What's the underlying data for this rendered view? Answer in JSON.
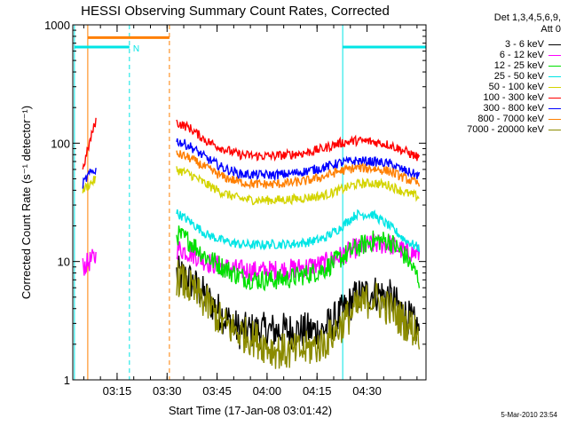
{
  "chart_data": {
    "type": "line",
    "title": "HESSI Observing Summary Count Rates, Corrected",
    "xlabel": "Start Time (17-Jan-08 03:01:42)",
    "ylabel": "Corrected Count Rate (s⁻¹ detector⁻¹)",
    "yscale": "log",
    "ylim": [
      1,
      1000
    ],
    "xlim_minutes": [
      0,
      106
    ],
    "x_tick_labels": [
      "03:15",
      "03:30",
      "03:45",
      "04:00",
      "04:15",
      "04:30"
    ],
    "y_tick_labels": [
      "1",
      "10",
      "100",
      "1000"
    ],
    "legend_header": [
      "Det 1,3,4,5,6,9,",
      "Att 0"
    ],
    "legend_position": "top-right-outside",
    "grid": false,
    "annotation": "N",
    "x_minutes": [
      3,
      5,
      7,
      29,
      31,
      35,
      40,
      45,
      50,
      55,
      60,
      65,
      70,
      75,
      80,
      85,
      90,
      95,
      100,
      104
    ],
    "series": [
      {
        "name": "3 - 6 keV",
        "color": "#000000",
        "values": [
          null,
          null,
          null,
          null,
          8,
          7,
          5,
          3.5,
          2.6,
          2.6,
          2.6,
          2.6,
          2.6,
          2.6,
          3.5,
          5,
          5.5,
          5,
          3.5,
          2.6
        ]
      },
      {
        "name": "6 - 12 keV",
        "color": "#ff00ff",
        "values": [
          9,
          10,
          11,
          null,
          13,
          12,
          10,
          9,
          8.5,
          8.3,
          8.4,
          8.6,
          9,
          9.5,
          11,
          13,
          14,
          14,
          12,
          11.5
        ]
      },
      {
        "name": "12 - 25 keV",
        "color": "#00e000",
        "values": [
          null,
          null,
          null,
          null,
          17,
          15,
          11,
          9,
          7.5,
          7,
          7,
          7.2,
          7.8,
          8.5,
          10.5,
          13,
          15,
          15,
          11,
          7
        ]
      },
      {
        "name": "25 - 50 keV",
        "color": "#00e5e5",
        "values": [
          null,
          null,
          null,
          null,
          26,
          22,
          17,
          15,
          14,
          13.8,
          14,
          14,
          14.5,
          15.5,
          19,
          25,
          25,
          20,
          15,
          13
        ]
      },
      {
        "name": "50 - 100 keV",
        "color": "#d4d400",
        "values": [
          40,
          45,
          50,
          null,
          60,
          55,
          45,
          38,
          34,
          33,
          33,
          33.5,
          34.5,
          36,
          40,
          45,
          46,
          44,
          38,
          35
        ]
      },
      {
        "name": "100 - 300 keV",
        "color": "#ff0000",
        "values": [
          60,
          100,
          160,
          null,
          150,
          135,
          105,
          90,
          80,
          78,
          78,
          80,
          83,
          90,
          100,
          105,
          103,
          97,
          85,
          75
        ]
      },
      {
        "name": "300 - 800 keV",
        "color": "#0000ff",
        "values": [
          45,
          55,
          60,
          null,
          105,
          95,
          75,
          62,
          55,
          54,
          54,
          55,
          58,
          62,
          68,
          71,
          70,
          67,
          58,
          53
        ]
      },
      {
        "name": "800 - 7000 keV",
        "color": "#ff7f00",
        "values": [
          null,
          null,
          null,
          null,
          82,
          75,
          62,
          52,
          47,
          45,
          45,
          46,
          48,
          52,
          58,
          62,
          61,
          58,
          50,
          45
        ]
      },
      {
        "name": "7000 - 20000 keV",
        "color": "#8b8b00",
        "values": [
          null,
          null,
          null,
          null,
          7.5,
          6,
          4.5,
          3,
          2.5,
          2.2,
          1.8,
          1.7,
          1.8,
          2,
          2.8,
          4,
          5,
          4,
          3,
          2.5
        ]
      }
    ],
    "markers": [
      {
        "kind": "orange-bar",
        "color": "#ff7f00",
        "x_start": 4.5,
        "x_end": 29,
        "y": 780
      },
      {
        "kind": "cyan-bar",
        "color": "#00e5e5",
        "x_start": 0.5,
        "x_end": 17,
        "y": 650
      },
      {
        "kind": "cyan-bar",
        "color": "#00e5e5",
        "x_start": 81,
        "x_end": 106,
        "y": 650
      }
    ],
    "vlines": [
      {
        "x": 0.5,
        "color": "#00e5e5",
        "dash": false
      },
      {
        "x": 4.5,
        "color": "#ff7f00",
        "dash": false
      },
      {
        "x": 17,
        "color": "#00e5e5",
        "dash": true
      },
      {
        "x": 29,
        "color": "#ff7f00",
        "dash": true
      },
      {
        "x": 81,
        "color": "#00e5e5",
        "dash": false
      },
      {
        "x": 106,
        "color": "#00e5e5",
        "dash": true
      }
    ]
  },
  "timestamp": "5-Mar-2010 23:54"
}
